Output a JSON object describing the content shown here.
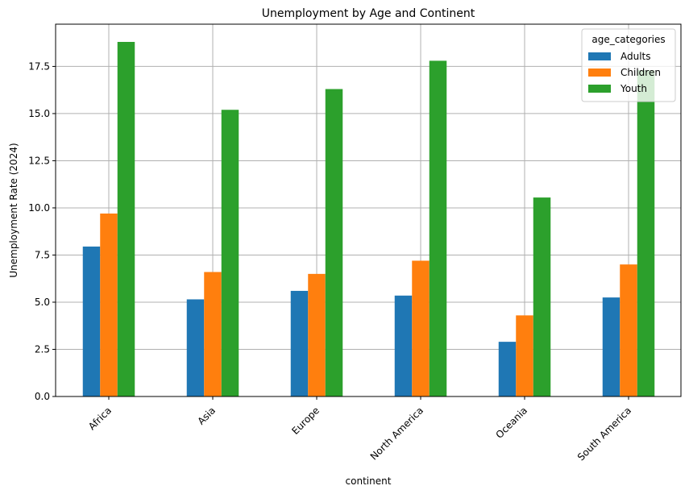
{
  "chart_data": {
    "type": "bar",
    "title": "Unemployment by Age and Continent",
    "xlabel": "continent",
    "ylabel": "Unemployment Rate (2024)",
    "categories": [
      "Africa",
      "Asia",
      "Europe",
      "North America",
      "Oceania",
      "South America"
    ],
    "series": [
      {
        "name": "Adults",
        "color": "#1f77b4",
        "values": [
          7.95,
          5.15,
          5.6,
          5.35,
          2.9,
          5.25
        ]
      },
      {
        "name": "Children",
        "color": "#ff7f0e",
        "values": [
          9.7,
          6.6,
          6.5,
          7.2,
          4.3,
          7.0
        ]
      },
      {
        "name": "Youth",
        "color": "#2ca02c",
        "values": [
          18.8,
          15.2,
          16.3,
          17.8,
          10.55,
          17.3
        ]
      }
    ],
    "ylim": [
      0,
      19.74
    ],
    "yticks": [
      "0.0",
      "2.5",
      "5.0",
      "7.5",
      "10.0",
      "12.5",
      "15.0",
      "17.5"
    ],
    "ytick_values": [
      0,
      2.5,
      5,
      7.5,
      10,
      12.5,
      15,
      17.5
    ],
    "grid": true,
    "legend": {
      "title": "age_categories",
      "position": "top-right"
    }
  }
}
